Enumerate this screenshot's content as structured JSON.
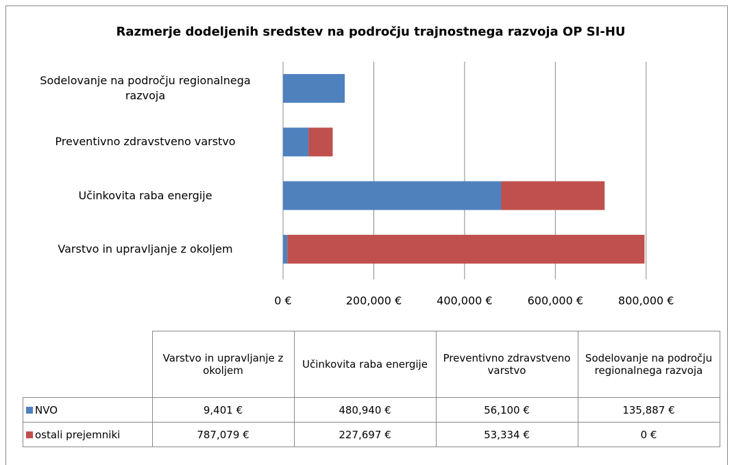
{
  "chart_data": {
    "type": "stacked_bar_horizontal",
    "title": "Razmerje dodeljenih sredstev na področju trajnostnega razvoja OP SI-HU",
    "categories": [
      "Varstvo in upravljanje z okoljem",
      "Učinkovita raba energije",
      "Preventivno zdravstveno varstvo",
      "Sodelovanje na področju regionalnega razvoja"
    ],
    "series": [
      {
        "name": "NVO",
        "color": "#4f81bd",
        "values": [
          9401,
          480940,
          56100,
          135887
        ],
        "value_labels": [
          "9,401 €",
          "480,940 €",
          "56,100 €",
          "135,887 €"
        ]
      },
      {
        "name": "ostali prejemniki",
        "color": "#c0504d",
        "values": [
          787079,
          227697,
          53334,
          0
        ],
        "value_labels": [
          "787,079 €",
          "227,697 €",
          "53,334 €",
          "0 €"
        ]
      }
    ],
    "xlim": [
      0,
      900000
    ],
    "xticks": [
      {
        "value": 0,
        "label": "0 €"
      },
      {
        "value": 200000,
        "label": "200,000 €"
      },
      {
        "value": 400000,
        "label": "400,000 €"
      },
      {
        "value": 600000,
        "label": "600,000 €"
      },
      {
        "value": 800000,
        "label": "800,000 €"
      }
    ],
    "grid": true
  }
}
